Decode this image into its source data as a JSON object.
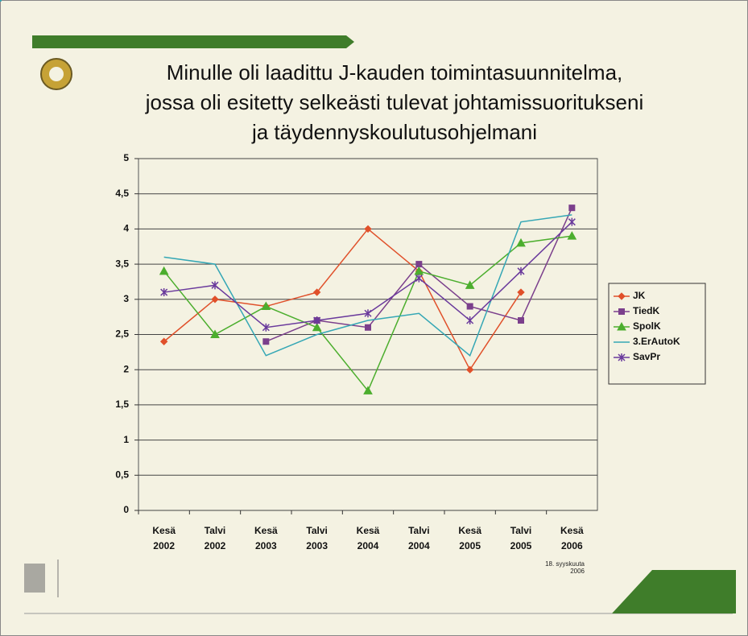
{
  "chart_data": {
    "type": "line",
    "title": "Minulle oli laadittu J-kauden toimintasuunnitelma,\njossa oli esitetty selkeästi tulevat johtamissuoritukseni\nja täydennyskoulutusohjelmani",
    "categories": [
      "Kesä 2002",
      "Talvi 2002",
      "Kesä 2003",
      "Talvi 2003",
      "Kesä 2004",
      "Talvi 2004",
      "Kesä 2005",
      "Talvi 2005",
      "Kesä 2006"
    ],
    "series": [
      {
        "name": "JK",
        "color": "#e0502a",
        "marker": "diamond",
        "values": [
          2.4,
          3.0,
          2.9,
          3.1,
          4.0,
          3.4,
          2.0,
          3.1,
          null
        ]
      },
      {
        "name": "TiedK",
        "color": "#7b3f8c",
        "marker": "square",
        "values": [
          null,
          null,
          2.4,
          2.7,
          2.6,
          3.5,
          2.9,
          2.7,
          4.3
        ]
      },
      {
        "name": "SpolK",
        "color": "#4cae2e",
        "marker": "triangle",
        "values": [
          3.4,
          2.5,
          2.9,
          2.6,
          1.7,
          3.4,
          3.2,
          3.8,
          3.9
        ]
      },
      {
        "name": "3.ErAutoK",
        "color": "#35a7b5",
        "marker": "none",
        "values": [
          3.6,
          3.5,
          2.2,
          2.5,
          2.7,
          2.8,
          2.2,
          4.1,
          4.2
        ]
      },
      {
        "name": "SavPr",
        "color": "#6a3a9c",
        "marker": "star",
        "values": [
          3.1,
          3.2,
          2.6,
          2.7,
          2.8,
          3.3,
          2.7,
          3.4,
          4.1
        ]
      }
    ],
    "ylim": [
      0,
      5
    ],
    "yticks": [
      0,
      {
        "value": 0.5,
        "label": "0,5"
      },
      1,
      {
        "value": 1.5,
        "label": "1,5"
      },
      2,
      {
        "value": 2.5,
        "label": "2,5"
      },
      3,
      {
        "value": 3.5,
        "label": "3,5"
      },
      4,
      {
        "value": 4.5,
        "label": "4,5"
      },
      5
    ],
    "grid": true,
    "legend": "right",
    "date": "18. syyskuuta\n2006"
  }
}
